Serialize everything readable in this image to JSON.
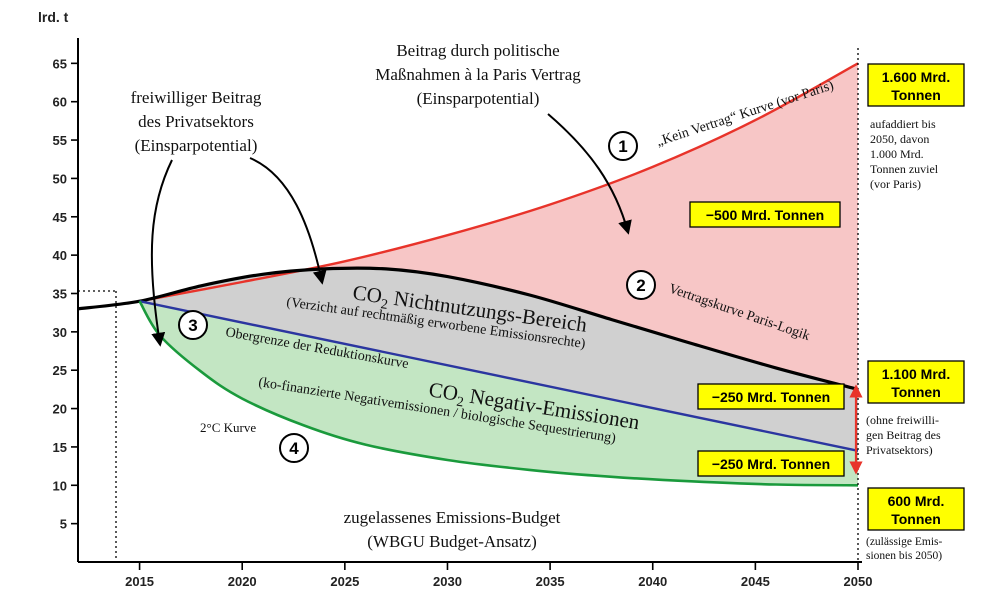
{
  "chart_data": {
    "type": "area",
    "ylabel": "lrd. t",
    "xlim": [
      2012,
      2050
    ],
    "ylim": [
      0,
      67
    ],
    "y_ticks": [
      5,
      10,
      15,
      20,
      25,
      30,
      35,
      40,
      45,
      50,
      55,
      60,
      65
    ],
    "x_ticks": [
      2015,
      2020,
      2025,
      2030,
      2035,
      2040,
      2045,
      2050
    ],
    "grid": false,
    "series": [
      {
        "name": "„Kein Vertrag“ Kurve (vor Paris)",
        "color": "#e8332a",
        "fill": "#f7c6c6",
        "x": [
          2015,
          2020,
          2025,
          2030,
          2035,
          2040,
          2045,
          2050
        ],
        "y": [
          34,
          36.5,
          39.2,
          42.6,
          46.6,
          51.5,
          57.6,
          65
        ]
      },
      {
        "name": "Vertragskurve Paris-Logik",
        "color": "#000000",
        "fill": "#d0d0d0",
        "x": [
          2012,
          2015,
          2018,
          2021,
          2024,
          2027,
          2030,
          2034,
          2038,
          2042,
          2046,
          2050
        ],
        "y": [
          33,
          34,
          36,
          37.5,
          38.2,
          38.2,
          37.2,
          34.8,
          31.6,
          28.4,
          25.3,
          22.5
        ]
      },
      {
        "name": "Obergrenze der Reduktionskurve",
        "color": "#2b36a0",
        "fill": "#c3e6c3",
        "x": [
          2015,
          2050
        ],
        "y": [
          34,
          14.5
        ]
      },
      {
        "name": "2°C Kurve",
        "color": "#1a9a3c",
        "x": [
          2015,
          2016,
          2018,
          2020,
          2023,
          2026,
          2030,
          2034,
          2038,
          2042,
          2046,
          2050
        ],
        "y": [
          34,
          29.5,
          24.8,
          21.3,
          17.8,
          15.3,
          13.3,
          12,
          11.1,
          10.5,
          10.1,
          10
        ]
      }
    ],
    "annotations": {
      "top_center": [
        "Beitrag durch politische",
        "Maßnahmen à la Paris Vertrag",
        "(Einsparpotential)"
      ],
      "top_left": [
        "freiwilliger Beitrag",
        "des Privatsektors",
        "(Einsparpotential)"
      ],
      "nichtnutzung_title_pre": "CO",
      "nichtnutzung_title_sub": "2",
      "nichtnutzung_title_post": " Nichtnutzungs-Bereich",
      "nichtnutzung_sub": "(Verzicht auf rechtmäßig erworbene Emissionsrechte)",
      "negativ_title_pre": "CO",
      "negativ_title_sub": "2",
      "negativ_title_post": " Negativ-Emissionen",
      "negativ_sub": "(ko-finanzierte Negativemissionen / biologische Sequestrierung)",
      "obergrenze": "Obergrenze der Reduktionskurve",
      "kein_vertrag": "„Kein Vertrag“ Kurve (vor Paris)",
      "vertragskurve": "Vertragskurve Paris-Logik",
      "two_degree": "2°C Kurve",
      "budget": [
        "zugelassenes Emissions-Budget",
        "(WBGU Budget-Ansatz)"
      ],
      "circle_labels": [
        "1",
        "2",
        "3",
        "4"
      ],
      "inner_box_500": "−500 Mrd. Tonnen",
      "inner_box_250a": "−250 Mrd. Tonnen",
      "inner_box_250b": "−250 Mrd. Tonnen"
    },
    "side_boxes": {
      "box1": [
        "1.600 Mrd.",
        "Tonnen"
      ],
      "box1_note": [
        "aufaddiert bis",
        "2050, davon",
        "1.000 Mrd.",
        "Tonnen zuviel",
        "(vor Paris)"
      ],
      "box2": [
        "1.100 Mrd.",
        "Tonnen"
      ],
      "box2_note": [
        "(ohne freiwilli-",
        "gen Beitrag des",
        "Privatsektors)"
      ],
      "box3": [
        "600 Mrd.",
        "Tonnen"
      ],
      "box3_note": [
        "(zulässige Emis-",
        "sionen bis 2050)"
      ]
    },
    "colors": {
      "highlight": "#ffff00",
      "red_area": "#f7c6c6",
      "grey_area": "#d0d0d0",
      "green_area": "#c3e6c3",
      "arrow": "#e8332a"
    }
  }
}
